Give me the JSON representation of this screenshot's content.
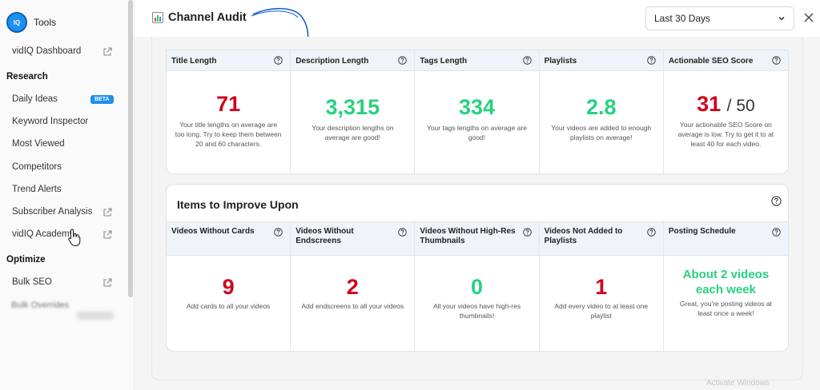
{
  "sidebar": {
    "brand": "Tools",
    "dashboard": "vidIQ Dashboard",
    "research_heading": "Research",
    "research_items": [
      "Daily Ideas",
      "Keyword Inspector",
      "Most Viewed",
      "Competitors",
      "Trend Alerts",
      "Subscriber Analysis",
      "vidIQ Academy"
    ],
    "beta_label": "BETA",
    "optimize_heading": "Optimize",
    "optimize_items": [
      "Bulk SEO"
    ],
    "blurred_item": "Bulk Overrides"
  },
  "header": {
    "title": "Channel Audit",
    "range": "Last 30 Days"
  },
  "metrics": [
    {
      "label": "Title Length",
      "value": "71",
      "color": "#d0021b",
      "desc": "Your title lengths on average are too long. Try to keep them between 20 and 60 characters."
    },
    {
      "label": "Description Length",
      "value": "3,315",
      "color": "#27d17f",
      "desc": "Your description lengths on average are good!"
    },
    {
      "label": "Tags Length",
      "value": "334",
      "color": "#27d17f",
      "desc": "Your tags lengths on average are good!"
    },
    {
      "label": "Playlists",
      "value": "2.8",
      "color": "#27d17f",
      "desc": "Your videos are added to enough playlists on average!"
    },
    {
      "label": "Actionable SEO Score",
      "value": "31",
      "value_suffix": "/ 50",
      "color": "#d0021b",
      "desc": "Your actionable SEO Score on average is low. Try to get it to at least 40 for each video."
    }
  ],
  "improve": {
    "title": "Items to Improve Upon",
    "items": [
      {
        "label": "Videos Without Cards",
        "value": "9",
        "color": "#d0021b",
        "desc": "Add cards to all your videos"
      },
      {
        "label": "Videos Without Endscreens",
        "value": "2",
        "color": "#d0021b",
        "desc": "Add endscreens to all your videos"
      },
      {
        "label": "Videos Without High-Res Thumbnails",
        "value": "0",
        "color": "#27d17f",
        "desc": "All your videos have high-res thumbnails!"
      },
      {
        "label": "Videos Not Added to Playlists",
        "value": "1",
        "color": "#d0021b",
        "desc": "Add every video to at least one playlist"
      },
      {
        "label": "Posting Schedule",
        "value": "About 2 videos each week",
        "color": "#27d17f",
        "desc": "Great, you're posting videos at least once a week!"
      }
    ]
  },
  "watermark": "Activate Windows",
  "icons": [
    "external-link-icon",
    "question-icon",
    "chevron-down-icon",
    "close-icon",
    "bar-chart-icon",
    "hand-cursor-icon",
    "arrow-annotation-icon"
  ]
}
